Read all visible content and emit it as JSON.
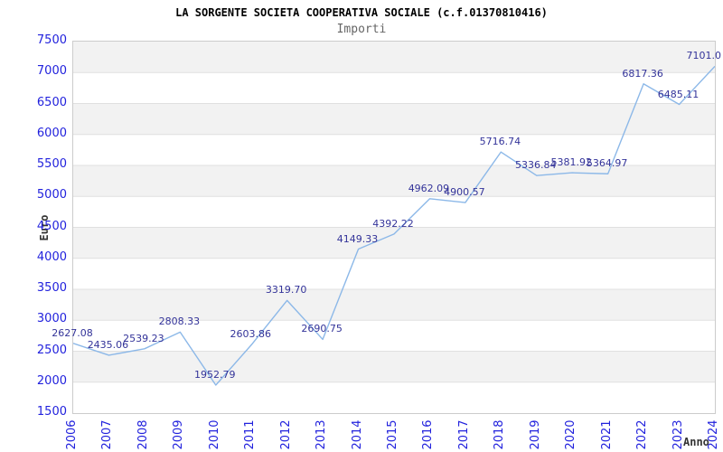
{
  "title": "LA SORGENTE SOCIETA COOPERATIVA SOCIALE (c.f.01370810416)",
  "subtitle": "Importi",
  "y_axis_title": "Euro",
  "x_axis_title": "Anno",
  "colors": {
    "line": "#8cb8e8",
    "point_label": "#333399",
    "tick_label": "#2222dd",
    "band": "#f2f2f2",
    "grid": "#e0e0e0",
    "plot_border": "#cccccc",
    "title": "#000000",
    "subtitle": "#666666",
    "axis_title": "#333333"
  },
  "chart_data": {
    "type": "line",
    "title": "LA SORGENTE SOCIETA COOPERATIVA SOCIALE (c.f.01370810416)",
    "subtitle": "Importi",
    "xlabel": "Anno",
    "ylabel": "Euro",
    "categories": [
      "2006",
      "2007",
      "2008",
      "2009",
      "2010",
      "2011",
      "2012",
      "2013",
      "2014",
      "2015",
      "2016",
      "2017",
      "2018",
      "2019",
      "2020",
      "2021",
      "2022",
      "2023",
      "2024"
    ],
    "values": [
      2627.08,
      2435.06,
      2539.23,
      2808.33,
      1952.79,
      2603.86,
      3319.7,
      2690.75,
      4149.33,
      4392.22,
      4962.09,
      4900.57,
      5716.74,
      5336.84,
      5381.92,
      5364.97,
      6817.36,
      6485.11,
      7101.0
    ],
    "point_labels": [
      "2627.08",
      "2435.06",
      "2539.23",
      "2808.33",
      "1952.79",
      "2603.86",
      "3319.70",
      "2690.75",
      "4149.33",
      "4392.22",
      "4962.09",
      "4900.57",
      "5716.74",
      "5336.84",
      "5381.92",
      "5364.97",
      "6817.36",
      "6485.11",
      "7101.0"
    ],
    "ylim": [
      1500,
      7500
    ],
    "ytick_step": 500,
    "yticks": [
      1500,
      2000,
      2500,
      3000,
      3500,
      4000,
      4500,
      5000,
      5500,
      6000,
      6500,
      7000,
      7500
    ],
    "grid": "horizontal-only",
    "legend": "none",
    "markers": "none",
    "background_bands": "alternating gray/white horizontal bands, gray at top"
  }
}
